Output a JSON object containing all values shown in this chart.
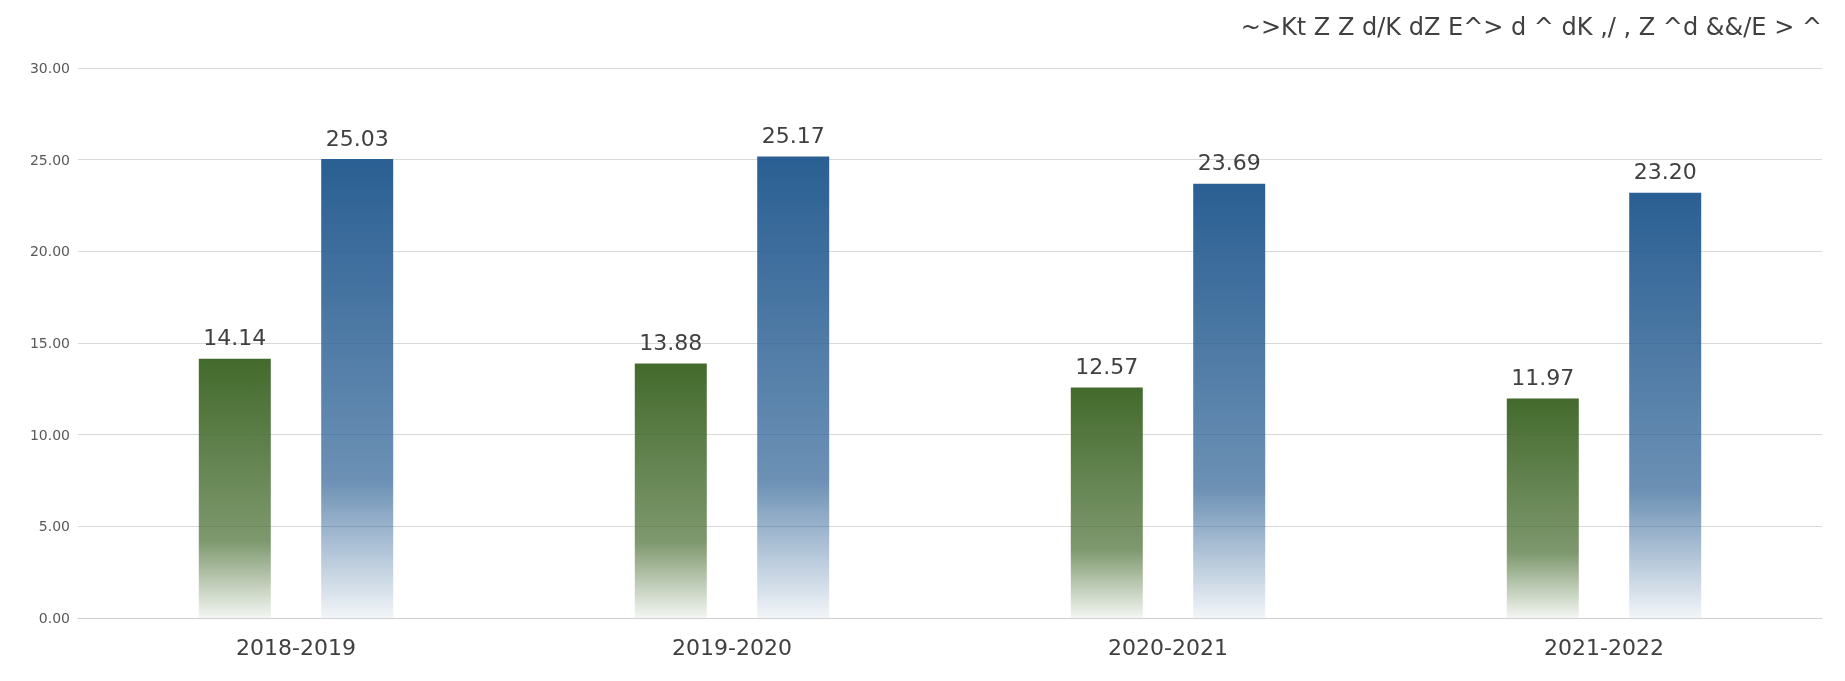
{
  "chart_data": {
    "type": "bar",
    "title": "~>Kt Z Z d/K dZ E^> d ^ dK ,/ , Z ^d &&/E > ^",
    "categories": [
      "2018-2019",
      "2019-2020",
      "2020-2021",
      "2021-2022"
    ],
    "series": [
      {
        "color": "#436a2c",
        "values": [
          14.14,
          13.88,
          12.57,
          11.97
        ],
        "value_labels": [
          "14.14",
          "13.88",
          "12.57",
          "11.97"
        ]
      },
      {
        "color": "#2a5f93",
        "values": [
          25.03,
          25.17,
          23.69,
          23.2
        ],
        "value_labels": [
          "25.03",
          "25.17",
          "23.69",
          "23.20"
        ]
      }
    ],
    "ylim": [
      0,
      30
    ],
    "yticks": [
      {
        "value": 0,
        "label": "0.00"
      },
      {
        "value": 5,
        "label": "5.00"
      },
      {
        "value": 10,
        "label": "10.00"
      },
      {
        "value": 15,
        "label": "15.00"
      },
      {
        "value": 20,
        "label": "20.00"
      },
      {
        "value": 25,
        "label": "25.00"
      },
      {
        "value": 30,
        "label": "30.00"
      }
    ],
    "grid": "y"
  }
}
